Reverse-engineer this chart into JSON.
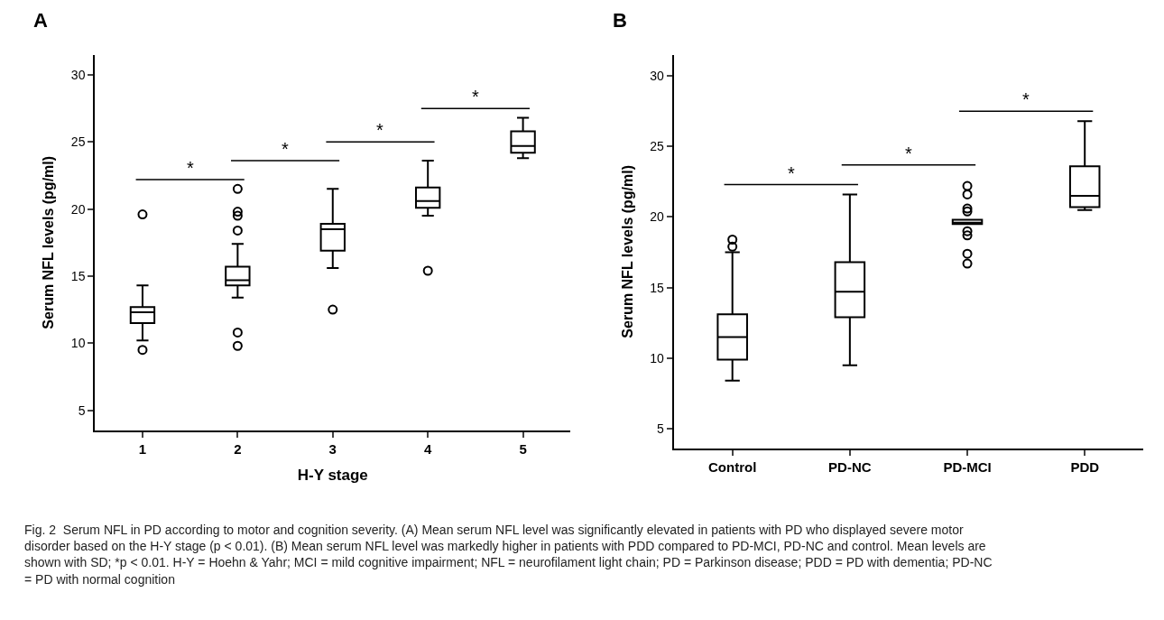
{
  "chart_data": [
    {
      "type": "box",
      "title": "A",
      "xlabel": "H-Y stage",
      "ylabel": "Serum NFL levels (pg/ml)",
      "categories": [
        "1",
        "2",
        "3",
        "4",
        "5"
      ],
      "ylim": [
        3.5,
        31.5
      ],
      "yticks": [
        5,
        10,
        15,
        20,
        25,
        30
      ],
      "color": "#000000",
      "boxes": [
        {
          "low": 10.2,
          "q1": 11.5,
          "median": 12.3,
          "q3": 12.7,
          "high": 14.3,
          "outliers": [
            19.6,
            9.5
          ]
        },
        {
          "low": 13.4,
          "q1": 14.3,
          "median": 14.7,
          "q3": 15.7,
          "high": 17.4,
          "outliers": [
            21.5,
            19.8,
            19.5,
            18.4,
            10.8,
            9.8
          ]
        },
        {
          "low": 15.6,
          "q1": 16.9,
          "median": 18.5,
          "q3": 18.9,
          "high": 21.5,
          "outliers": [
            12.5
          ]
        },
        {
          "low": 19.5,
          "q1": 20.1,
          "median": 20.6,
          "q3": 21.6,
          "high": 23.6,
          "outliers": [
            15.4
          ]
        },
        {
          "low": 23.8,
          "q1": 24.2,
          "median": 24.7,
          "q3": 25.8,
          "high": 26.8
        }
      ],
      "annotations": [
        "*",
        "*",
        "*",
        "*"
      ]
    },
    {
      "type": "box",
      "title": "B",
      "ylabel": "Serum NFL levels (pg/ml)",
      "categories": [
        "Control",
        "PD-NC",
        "PD-MCI",
        "PDD"
      ],
      "ylim": [
        3.6,
        31.5
      ],
      "yticks": [
        5,
        10,
        15,
        20,
        25,
        30
      ],
      "color": "#000000",
      "boxes": [
        {
          "low": 8.4,
          "q1": 9.9,
          "median": 11.5,
          "q3": 13.1,
          "high": 17.5,
          "outliers": [
            18.4,
            17.9
          ]
        },
        {
          "low": 9.5,
          "q1": 12.9,
          "median": 14.7,
          "q3": 16.8,
          "high": 21.6
        },
        {
          "low": 19.5,
          "q1": 19.5,
          "median": 19.6,
          "q3": 19.8,
          "high": 19.8,
          "outliers": [
            22.2,
            21.6,
            20.6,
            20.4,
            19.0,
            18.7,
            17.4,
            16.7
          ]
        },
        {
          "low": 20.5,
          "q1": 20.7,
          "median": 21.5,
          "q3": 23.6,
          "high": 26.8
        }
      ],
      "annotations": [
        "*",
        "*",
        "*"
      ]
    },
    {
      "type": "other",
      "annotations": [
        "Fig. 2  Serum NFL in PD according to motor and cognition severity. (A) Mean serum NFL level was significantly elevated in patients with PD who displayed severe motor disorder based on the H-Y stage (p < 0.01). (B) Mean serum NFL level was markedly higher in patients with PDD compared to PD-MCI, PD-NC and control. Mean levels are shown with SD; *p < 0.01. H-Y = Hoehn & Yahr; MCI = mild cognitive impairment; NFL = neurofilament light chain; PD = Parkinson disease; PDD = PD with dementia; PD-NC = PD with normal cognition"
      ]
    }
  ]
}
